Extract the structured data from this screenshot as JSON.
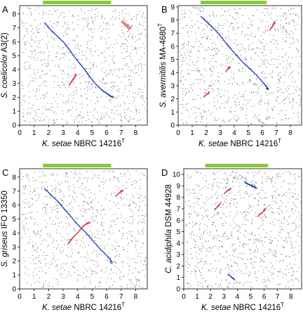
{
  "chart_data": [
    {
      "type": "scatter",
      "panel": "A",
      "xlabel": {
        "italic": "K. setae",
        "roman": " NBRC 14216",
        "sup": "T"
      },
      "ylabel": {
        "italic": "S. coelicolor",
        "roman": " A3(2)",
        "sup": ""
      },
      "x_ticks": [
        "0",
        "1",
        "2",
        "3",
        "4",
        "5",
        "6",
        "7",
        "8"
      ],
      "y_ticks": [
        "0",
        "1",
        "2",
        "3",
        "4",
        "5",
        "6",
        "7",
        "8"
      ],
      "xlim": [
        0,
        8.8
      ],
      "ylim": [
        0,
        8.6
      ],
      "bar_range": [
        1.6,
        6.3
      ],
      "forward_matches": [
        [
          1.7,
          7.4
        ],
        [
          2.0,
          7.0
        ],
        [
          2.5,
          6.5
        ],
        [
          3.0,
          6.0
        ],
        [
          3.5,
          5.3
        ],
        [
          4.0,
          4.6
        ],
        [
          4.4,
          4.1
        ],
        [
          4.8,
          3.5
        ],
        [
          5.2,
          3.0
        ],
        [
          5.6,
          2.6
        ],
        [
          6.0,
          2.3
        ],
        [
          6.3,
          2.1
        ]
      ],
      "reverse_matches": [
        [
          3.4,
          2.9
        ],
        [
          3.6,
          3.2
        ],
        [
          3.8,
          3.5
        ],
        [
          7.0,
          7.4
        ],
        [
          7.5,
          6.9
        ]
      ],
      "background_density": 900
    },
    {
      "type": "scatter",
      "panel": "B",
      "xlabel": {
        "italic": "K. setae",
        "roman": " NBRC 14216",
        "sup": "T"
      },
      "ylabel": {
        "italic": "S. avermitilis",
        "roman": " MA-4680",
        "sup": "T"
      },
      "x_ticks": [
        "0",
        "1",
        "2",
        "3",
        "4",
        "5",
        "6",
        "7",
        "8"
      ],
      "y_ticks": [
        "0",
        "1",
        "2",
        "3",
        "4",
        "5",
        "6",
        "7",
        "8",
        "9"
      ],
      "xlim": [
        0,
        8.8
      ],
      "ylim": [
        0,
        9.1
      ],
      "bar_range": [
        1.6,
        6.3
      ],
      "forward_matches": [
        [
          1.6,
          8.3
        ],
        [
          2.0,
          7.9
        ],
        [
          2.5,
          7.4
        ],
        [
          3.0,
          6.8
        ],
        [
          3.5,
          6.1
        ],
        [
          4.0,
          5.5
        ],
        [
          4.5,
          4.9
        ],
        [
          5.0,
          4.4
        ],
        [
          5.5,
          3.9
        ],
        [
          6.0,
          3.3
        ],
        [
          6.3,
          2.9
        ]
      ],
      "reverse_matches": [
        [
          3.4,
          4.1
        ],
        [
          3.6,
          4.3
        ],
        [
          6.5,
          7.2
        ],
        [
          6.8,
          7.7
        ],
        [
          1.8,
          2.1
        ],
        [
          2.1,
          2.4
        ]
      ],
      "background_density": 950
    },
    {
      "type": "scatter",
      "panel": "C",
      "xlabel": {
        "italic": "K. setae",
        "roman": " NBRC 14216",
        "sup": "T"
      },
      "ylabel": {
        "italic": "S. griseus",
        "roman": " IFO 13350",
        "sup": ""
      },
      "x_ticks": [
        "0",
        "1",
        "2",
        "3",
        "4",
        "5",
        "6",
        "7",
        "8"
      ],
      "y_ticks": [
        "0",
        "1",
        "2",
        "3",
        "4",
        "5",
        "6",
        "7",
        "8"
      ],
      "xlim": [
        0,
        8.8
      ],
      "ylim": [
        0,
        8.6
      ],
      "bar_range": [
        1.6,
        6.3
      ],
      "forward_matches": [
        [
          1.7,
          7.2
        ],
        [
          2.1,
          6.8
        ],
        [
          2.6,
          6.3
        ],
        [
          3.0,
          5.8
        ],
        [
          3.5,
          5.2
        ],
        [
          4.0,
          4.6
        ],
        [
          4.5,
          4.1
        ],
        [
          5.0,
          3.5
        ],
        [
          5.5,
          2.9
        ],
        [
          6.0,
          2.4
        ],
        [
          6.3,
          2.0
        ]
      ],
      "reverse_matches": [
        [
          3.3,
          3.2
        ],
        [
          3.6,
          3.6
        ],
        [
          3.9,
          3.9
        ],
        [
          4.3,
          4.4
        ],
        [
          4.7,
          4.7
        ],
        [
          6.6,
          6.6
        ],
        [
          6.9,
          6.9
        ]
      ],
      "background_density": 900
    },
    {
      "type": "scatter",
      "panel": "D",
      "xlabel": {
        "italic": "K. setae",
        "roman": " NBRC 14216",
        "sup": "T"
      },
      "ylabel": {
        "italic": "C. acidiphila",
        "roman": " DSM 44928",
        "sup": ""
      },
      "x_ticks": [
        "0",
        "1",
        "2",
        "3",
        "4",
        "5",
        "6",
        "7",
        "8"
      ],
      "y_ticks": [
        "0",
        "1",
        "2",
        "3",
        "4",
        "5",
        "6",
        "7",
        "8",
        "9",
        "10"
      ],
      "xlim": [
        0,
        8.8
      ],
      "ylim": [
        0,
        10.5
      ],
      "bar_range": [
        1.6,
        6.3
      ],
      "forward_matches": [
        [
          3.3,
          1.3
        ],
        [
          3.6,
          1.0
        ],
        [
          4.5,
          9.4
        ],
        [
          4.8,
          9.2
        ],
        [
          5.2,
          9.0
        ]
      ],
      "reverse_matches": [
        [
          3.0,
          8.3
        ],
        [
          3.3,
          8.6
        ],
        [
          2.3,
          6.9
        ],
        [
          2.6,
          7.3
        ],
        [
          5.5,
          6.3
        ],
        [
          6.0,
          6.8
        ]
      ],
      "background_density": 1000
    }
  ]
}
